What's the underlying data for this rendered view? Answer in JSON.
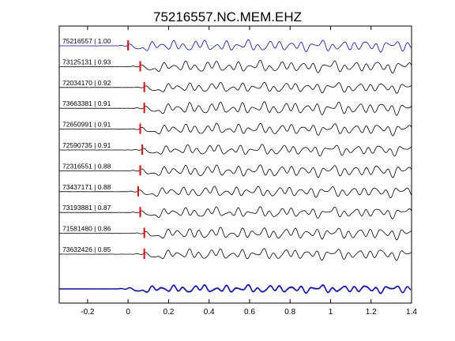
{
  "chart_data": {
    "type": "line",
    "title": "75216557.NC.MEM.EHZ",
    "xlabel": "",
    "ylabel": "",
    "xlim": [
      -0.34,
      1.4
    ],
    "x_ticks": [
      -0.2,
      0,
      0.2,
      0.4,
      0.6,
      0.8,
      1,
      1.2,
      1.4
    ],
    "x_tick_labels": [
      "-0.2",
      "0",
      "0.2",
      "0.4",
      "0.6",
      "0.8",
      "1",
      "1.2",
      "1.4"
    ],
    "grid": false,
    "legend": "none",
    "colors": {
      "reference_trace": "#0000ff",
      "similar_trace": "#000000",
      "overlay_trace": "#808080",
      "pick_marker": "#ff0000"
    },
    "series": [
      {
        "label": "75216557 | 1.00",
        "pick_time": 0.0,
        "reference": true
      },
      {
        "label": "73125131 | 0.93",
        "pick_time": 0.06,
        "reference": false
      },
      {
        "label": "72034170 | 0.92",
        "pick_time": 0.08,
        "reference": false
      },
      {
        "label": "73663381 | 0.91",
        "pick_time": 0.08,
        "reference": false
      },
      {
        "label": "72650991 | 0.91",
        "pick_time": 0.06,
        "reference": false
      },
      {
        "label": "72590735 | 0.91",
        "pick_time": 0.07,
        "reference": false
      },
      {
        "label": "72316551 | 0.88",
        "pick_time": 0.06,
        "reference": false
      },
      {
        "label": "73437171 | 0.88",
        "pick_time": 0.05,
        "reference": false
      },
      {
        "label": "73193881 | 0.87",
        "pick_time": 0.06,
        "reference": false
      },
      {
        "label": "71581480 | 0.86",
        "pick_time": 0.08,
        "reference": false
      },
      {
        "label": "73632426 | 0.85",
        "pick_time": 0.08,
        "reference": false
      }
    ],
    "overlay": {
      "description_label": ""
    }
  }
}
